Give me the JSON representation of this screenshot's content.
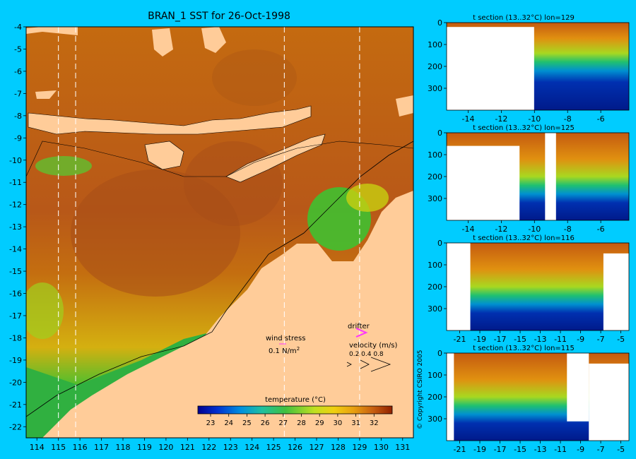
{
  "colors": {
    "background": "#00ccff",
    "land": "#ffcc99",
    "white": "#ffffff",
    "drifter": "#ff33ff"
  },
  "chart_data": [
    {
      "type": "heatmap",
      "title": "BRAN_1 SST for 26-Oct-1998",
      "x_ticks": [
        114,
        115,
        116,
        117,
        118,
        119,
        120,
        121,
        122,
        123,
        124,
        125,
        126,
        127,
        128,
        129,
        130,
        131
      ],
      "y_ticks": [
        -4,
        -5,
        -6,
        -7,
        -8,
        -9,
        -10,
        -11,
        -12,
        -13,
        -14,
        -15,
        -16,
        -17,
        -18,
        -19,
        -20,
        -21,
        -22
      ],
      "xlim": [
        113.5,
        131.5
      ],
      "ylim": [
        -22.5,
        -4
      ],
      "section_lines_lon": [
        115,
        115.8,
        129,
        125.5
      ],
      "colorbar": {
        "label": "temperature (°C)",
        "ticks": [
          23,
          24,
          25,
          26,
          27,
          28,
          29,
          30,
          31,
          32
        ],
        "range": [
          22.3,
          33
        ]
      },
      "legend": {
        "wind_label": "wind stress",
        "wind_scale": "0.1 N/m",
        "wind_scale_sup": "2",
        "drifter_label": "drifter",
        "velocity_label": "velocity (m/s)",
        "velocity_values": "0.2 0.4 0.8"
      },
      "copyright": "© Copyright CSIRO 2005"
    },
    {
      "type": "heatmap",
      "title": "t section (13..32°C) lon=129",
      "x_ticks": [
        -14,
        -12,
        -10,
        -8,
        -6
      ],
      "y_ticks": [
        0,
        100,
        200,
        300
      ],
      "xlim": [
        -15.3,
        -4.3
      ],
      "ylim": [
        400,
        0
      ]
    },
    {
      "type": "heatmap",
      "title": "t section (13..32°C) lon=125",
      "x_ticks": [
        -14,
        -12,
        -10,
        -8,
        -6
      ],
      "y_ticks": [
        0,
        100,
        200,
        300
      ],
      "xlim": [
        -15.3,
        -4.3
      ],
      "ylim": [
        400,
        0
      ]
    },
    {
      "type": "heatmap",
      "title": "t section (13..32°C) lon=116",
      "x_ticks": [
        -21,
        -19,
        -17,
        -15,
        -13,
        -11,
        -9,
        -7,
        -5
      ],
      "y_ticks": [
        0,
        100,
        200,
        300
      ],
      "xlim": [
        -22.3,
        -4.2
      ],
      "ylim": [
        400,
        0
      ]
    },
    {
      "type": "heatmap",
      "title": "t section (13..32°C) lon=115",
      "x_ticks": [
        -21,
        -19,
        -17,
        -15,
        -13,
        -11,
        -9,
        -7,
        -5
      ],
      "y_ticks": [
        0,
        100,
        200,
        300
      ],
      "xlim": [
        -22.3,
        -4.2
      ],
      "ylim": [
        400,
        0
      ]
    }
  ]
}
